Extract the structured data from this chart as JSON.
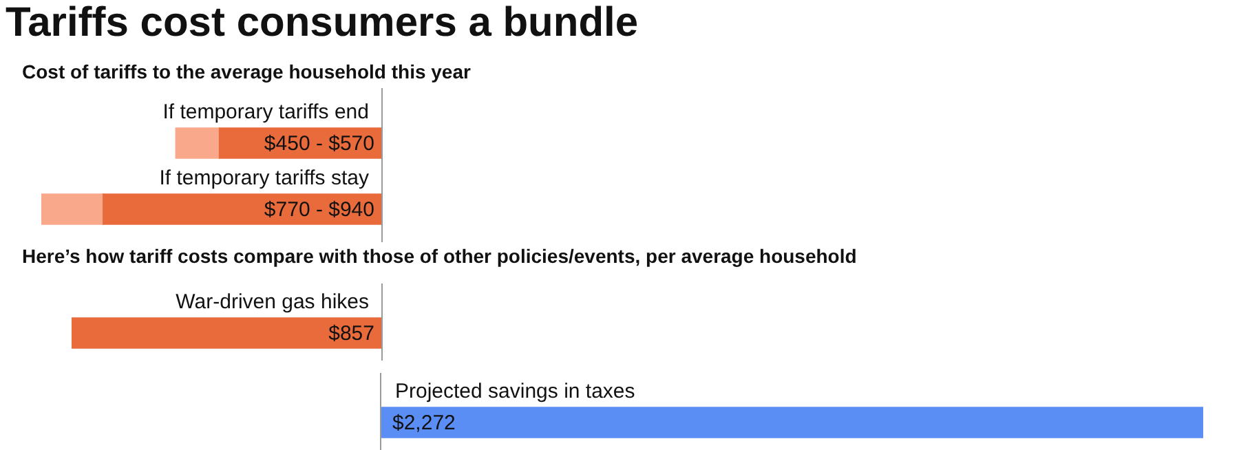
{
  "chart_data": [
    {
      "type": "bar",
      "orientation": "horizontal",
      "stacked": true,
      "tick_labels": false,
      "title": "Tariffs cost consumers a bundle",
      "subtitle": "Cost of tariffs to the average household this year",
      "categories": [
        "If temporary tariffs end",
        "If temporary tariffs stay"
      ],
      "xlim": [
        940,
        0
      ],
      "series": [
        {
          "color": "#e96b3c",
          "values": [
            450,
            770
          ],
          "value_labels": [
            "$450 - $570",
            "$770 - $940"
          ]
        },
        {
          "color": "#f9a88c",
          "values": [
            120,
            170
          ]
        }
      ]
    },
    {
      "type": "bar",
      "orientation": "horizontal",
      "tick_labels": false,
      "subtitle": "Here’s how tariff costs compare with those of other policies/events, per average household",
      "categories": [
        "War-driven gas hikes"
      ],
      "xlim": [
        857,
        0
      ],
      "series": [
        {
          "color": "#e96b3c",
          "values": [
            857
          ],
          "value_labels": [
            "$857"
          ]
        }
      ]
    },
    {
      "type": "bar",
      "orientation": "horizontal",
      "tick_labels": false,
      "categories": [
        "Projected savings in taxes"
      ],
      "series": [
        {
          "color": "#5b8ef5",
          "values": [
            2272
          ],
          "value_labels": [
            "$2,272"
          ]
        }
      ]
    }
  ]
}
